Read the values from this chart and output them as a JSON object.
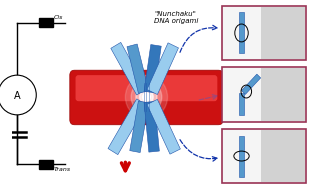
{
  "bg_color": "#ffffff",
  "cis_label": "Cis",
  "trans_label": "Trans",
  "nunchaku_label": "\"Nunchaku\"\nDNA origami",
  "dna_blue": "#5599cc",
  "dna_blue_light": "#99ccee",
  "dna_blue_dark": "#2255aa",
  "dna_blue_mid": "#3377bb",
  "membrane_red": "#cc1111",
  "membrane_highlight": "#ff6666",
  "membrane_dark": "#990000",
  "red_arrow_color": "#cc0000",
  "border_color": "#993355",
  "wire_color": "#000000",
  "panel_bg": "#f5f5f5",
  "gray_panel": "#bbbbbb",
  "arrow_blue": "#1133aa"
}
